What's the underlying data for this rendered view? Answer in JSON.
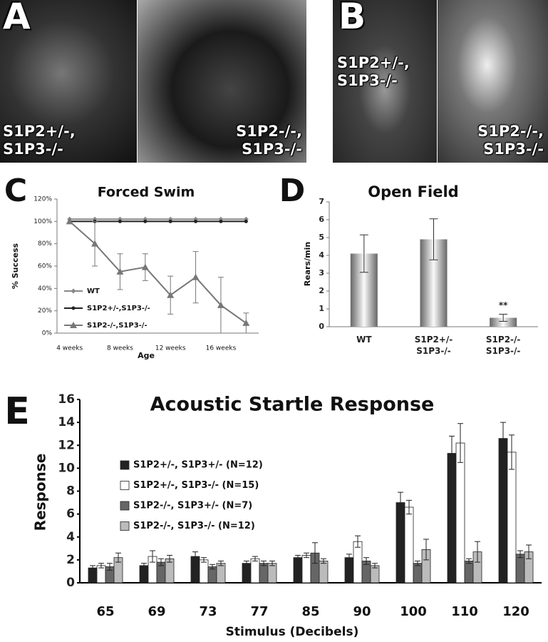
{
  "photo_panels": [
    {
      "letter": "A",
      "labels": [
        "S1P2+/-, S1P3-/-",
        "S1P2-/-, S1P3-/-"
      ]
    },
    {
      "letter": "B",
      "labels": [
        "S1P2+/-, S1P3-/-",
        "S1P2-/-, S1P3-/-"
      ]
    }
  ],
  "chart_data": [
    {
      "type": "line",
      "panel": "C",
      "title": "Forced Swim",
      "x_label": "Age",
      "y_label": "% Success",
      "categories": [
        "4 weeks",
        null,
        "8 weeks",
        null,
        "12 weeks",
        null,
        "16 weeks",
        null
      ],
      "ylim": [
        0,
        120
      ],
      "yticks": [
        {
          "value": 0,
          "label": "0%"
        },
        {
          "value": 20,
          "label": "20%"
        },
        {
          "value": 40,
          "label": "40%"
        },
        {
          "value": 60,
          "label": "60%"
        },
        {
          "value": 80,
          "label": "80%"
        },
        {
          "value": 100,
          "label": "100%"
        },
        {
          "value": 120,
          "label": "120%"
        }
      ],
      "legend": "lower left",
      "series": [
        {
          "name": "WT",
          "color": "#888888",
          "marker": "diamond",
          "values": [
            102,
            102,
            102,
            102,
            102,
            102,
            102,
            102
          ]
        },
        {
          "name": "S1P2+/-,S1P3-/-",
          "color": "#222222",
          "marker": "circle",
          "values": [
            100,
            100,
            100,
            100,
            100,
            100,
            100,
            100
          ]
        },
        {
          "name": "S1P2-/-,S1P3-/-",
          "color": "#777777",
          "marker": "triangle",
          "values": [
            100,
            80,
            55,
            59,
            34,
            50,
            25,
            9
          ],
          "errors": [
            null,
            20,
            16,
            12,
            17,
            23,
            25,
            9
          ]
        }
      ]
    },
    {
      "type": "bar",
      "panel": "D",
      "title": "Open Field",
      "y_label": "Rears/min",
      "categories": [
        "WT",
        "S1P2+/- S1P3-/-",
        "S1P2-/- S1P3-/-"
      ],
      "values": [
        4.1,
        4.9,
        0.5
      ],
      "errors": [
        1.05,
        1.15,
        0.2
      ],
      "annotation": "**",
      "ylim": [
        0,
        7
      ],
      "yticks": [
        0,
        1,
        2,
        3,
        4,
        5,
        6,
        7
      ]
    },
    {
      "type": "bar",
      "panel": "E",
      "title": "Acoustic Startle Response",
      "x_label": "Stimulus (Decibels)",
      "y_label": "Response",
      "categories": [
        "65",
        "69",
        "73",
        "77",
        "85",
        "90",
        "100",
        "110",
        "120"
      ],
      "ylim": [
        0,
        16
      ],
      "yticks": [
        0,
        2,
        4,
        6,
        8,
        10,
        12,
        14,
        16
      ],
      "series": [
        {
          "name": "S1P2+/-, S1P3+/- (N=12)",
          "color": "#222222",
          "values": [
            1.3,
            1.5,
            2.3,
            1.7,
            2.2,
            2.2,
            7.0,
            11.3,
            12.6
          ],
          "errors": [
            0.2,
            0.2,
            0.4,
            0.2,
            0.2,
            0.3,
            0.9,
            1.5,
            1.4
          ]
        },
        {
          "name": "S1P2+/-, S1P3-/- (N=15)",
          "color": "#ffffff",
          "values": [
            1.5,
            2.3,
            2.0,
            2.1,
            2.4,
            3.6,
            6.6,
            12.2,
            11.4
          ],
          "errors": [
            0.2,
            0.5,
            0.2,
            0.2,
            0.2,
            0.5,
            0.6,
            1.7,
            1.5
          ]
        },
        {
          "name": "S1P2-/-, S1P3+/- (N=7)",
          "color": "#666666",
          "values": [
            1.4,
            1.8,
            1.4,
            1.7,
            2.6,
            1.9,
            1.7,
            1.9,
            2.5
          ],
          "errors": [
            0.3,
            0.3,
            0.2,
            0.2,
            0.9,
            0.3,
            0.2,
            0.2,
            0.3
          ]
        },
        {
          "name": "S1P2-/-, S1P3-/- (N=12)",
          "color": "#bbbbbb",
          "values": [
            2.2,
            2.1,
            1.7,
            1.7,
            1.9,
            1.5,
            2.9,
            2.7,
            2.7
          ],
          "errors": [
            0.4,
            0.3,
            0.2,
            0.2,
            0.2,
            0.2,
            0.9,
            0.9,
            0.6
          ]
        }
      ]
    }
  ]
}
